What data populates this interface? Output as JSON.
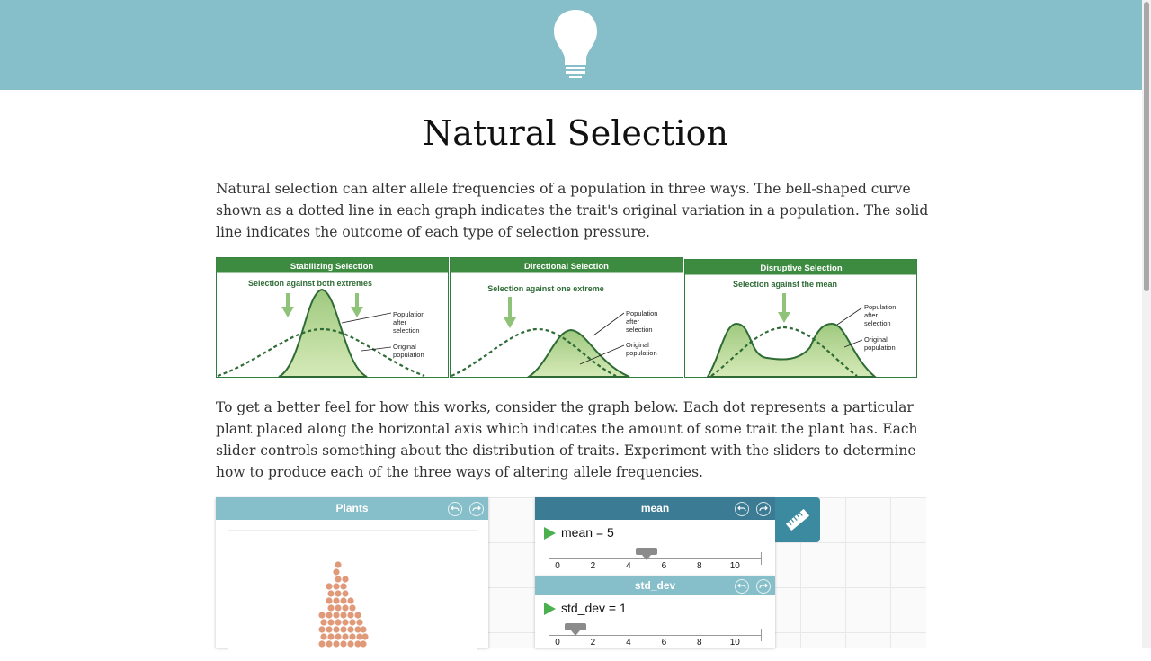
{
  "page": {
    "title": "Natural Selection",
    "paragraph1": "Natural selection can alter allele frequencies of a population in three ways. The bell-shaped curve shown as a dotted line in each graph indicates the trait's original variation in a population. The solid line indicates the outcome of each type of selection pressure.",
    "paragraph2": "To get a better feel for how this works, consider the graph below. Each dot represents a particular plant placed along the horizontal axis which indicates the amount of some trait the plant has. Each slider controls something about the distribution of traits. Experiment with the sliders to determine how to produce each of the three ways of altering allele frequencies."
  },
  "figures": [
    {
      "header": "Stabilizing Selection",
      "subtitle": "Selection against both extremes",
      "label_after": [
        "Population",
        "after",
        "selection"
      ],
      "label_original": [
        "Original",
        "population"
      ]
    },
    {
      "header": "Directional Selection",
      "subtitle": "Selection against one extreme",
      "label_after": [
        "Population",
        "after",
        "selection"
      ],
      "label_original": [
        "Original",
        "population"
      ]
    },
    {
      "header": "Disruptive Selection",
      "subtitle": "Selection against the mean",
      "label_after": [
        "Population",
        "after",
        "selection"
      ],
      "label_original": [
        "Original",
        "population"
      ]
    }
  ],
  "plants_panel": {
    "title": "Plants"
  },
  "sliders": [
    {
      "title": "mean",
      "label": "mean = 5",
      "value": 5,
      "min": 0,
      "max": 11,
      "ticks": [
        "0",
        "2",
        "4",
        "6",
        "8",
        "10"
      ]
    },
    {
      "title": "std_dev",
      "label": "std_dev = 1",
      "value": 1,
      "min": 0,
      "max": 11,
      "ticks": [
        "0",
        "2",
        "4",
        "6",
        "8",
        "10"
      ]
    }
  ],
  "icons": {
    "header": "lightbulb-icon",
    "undo": "undo-icon",
    "redo": "redo-icon",
    "ruler": "ruler-icon",
    "play": "play-icon"
  },
  "colors": {
    "header_bg": "#86bfc9",
    "slider_active": "#3b7c94",
    "dot": "#e09a7a",
    "figure_green": "#2e7d3e"
  }
}
